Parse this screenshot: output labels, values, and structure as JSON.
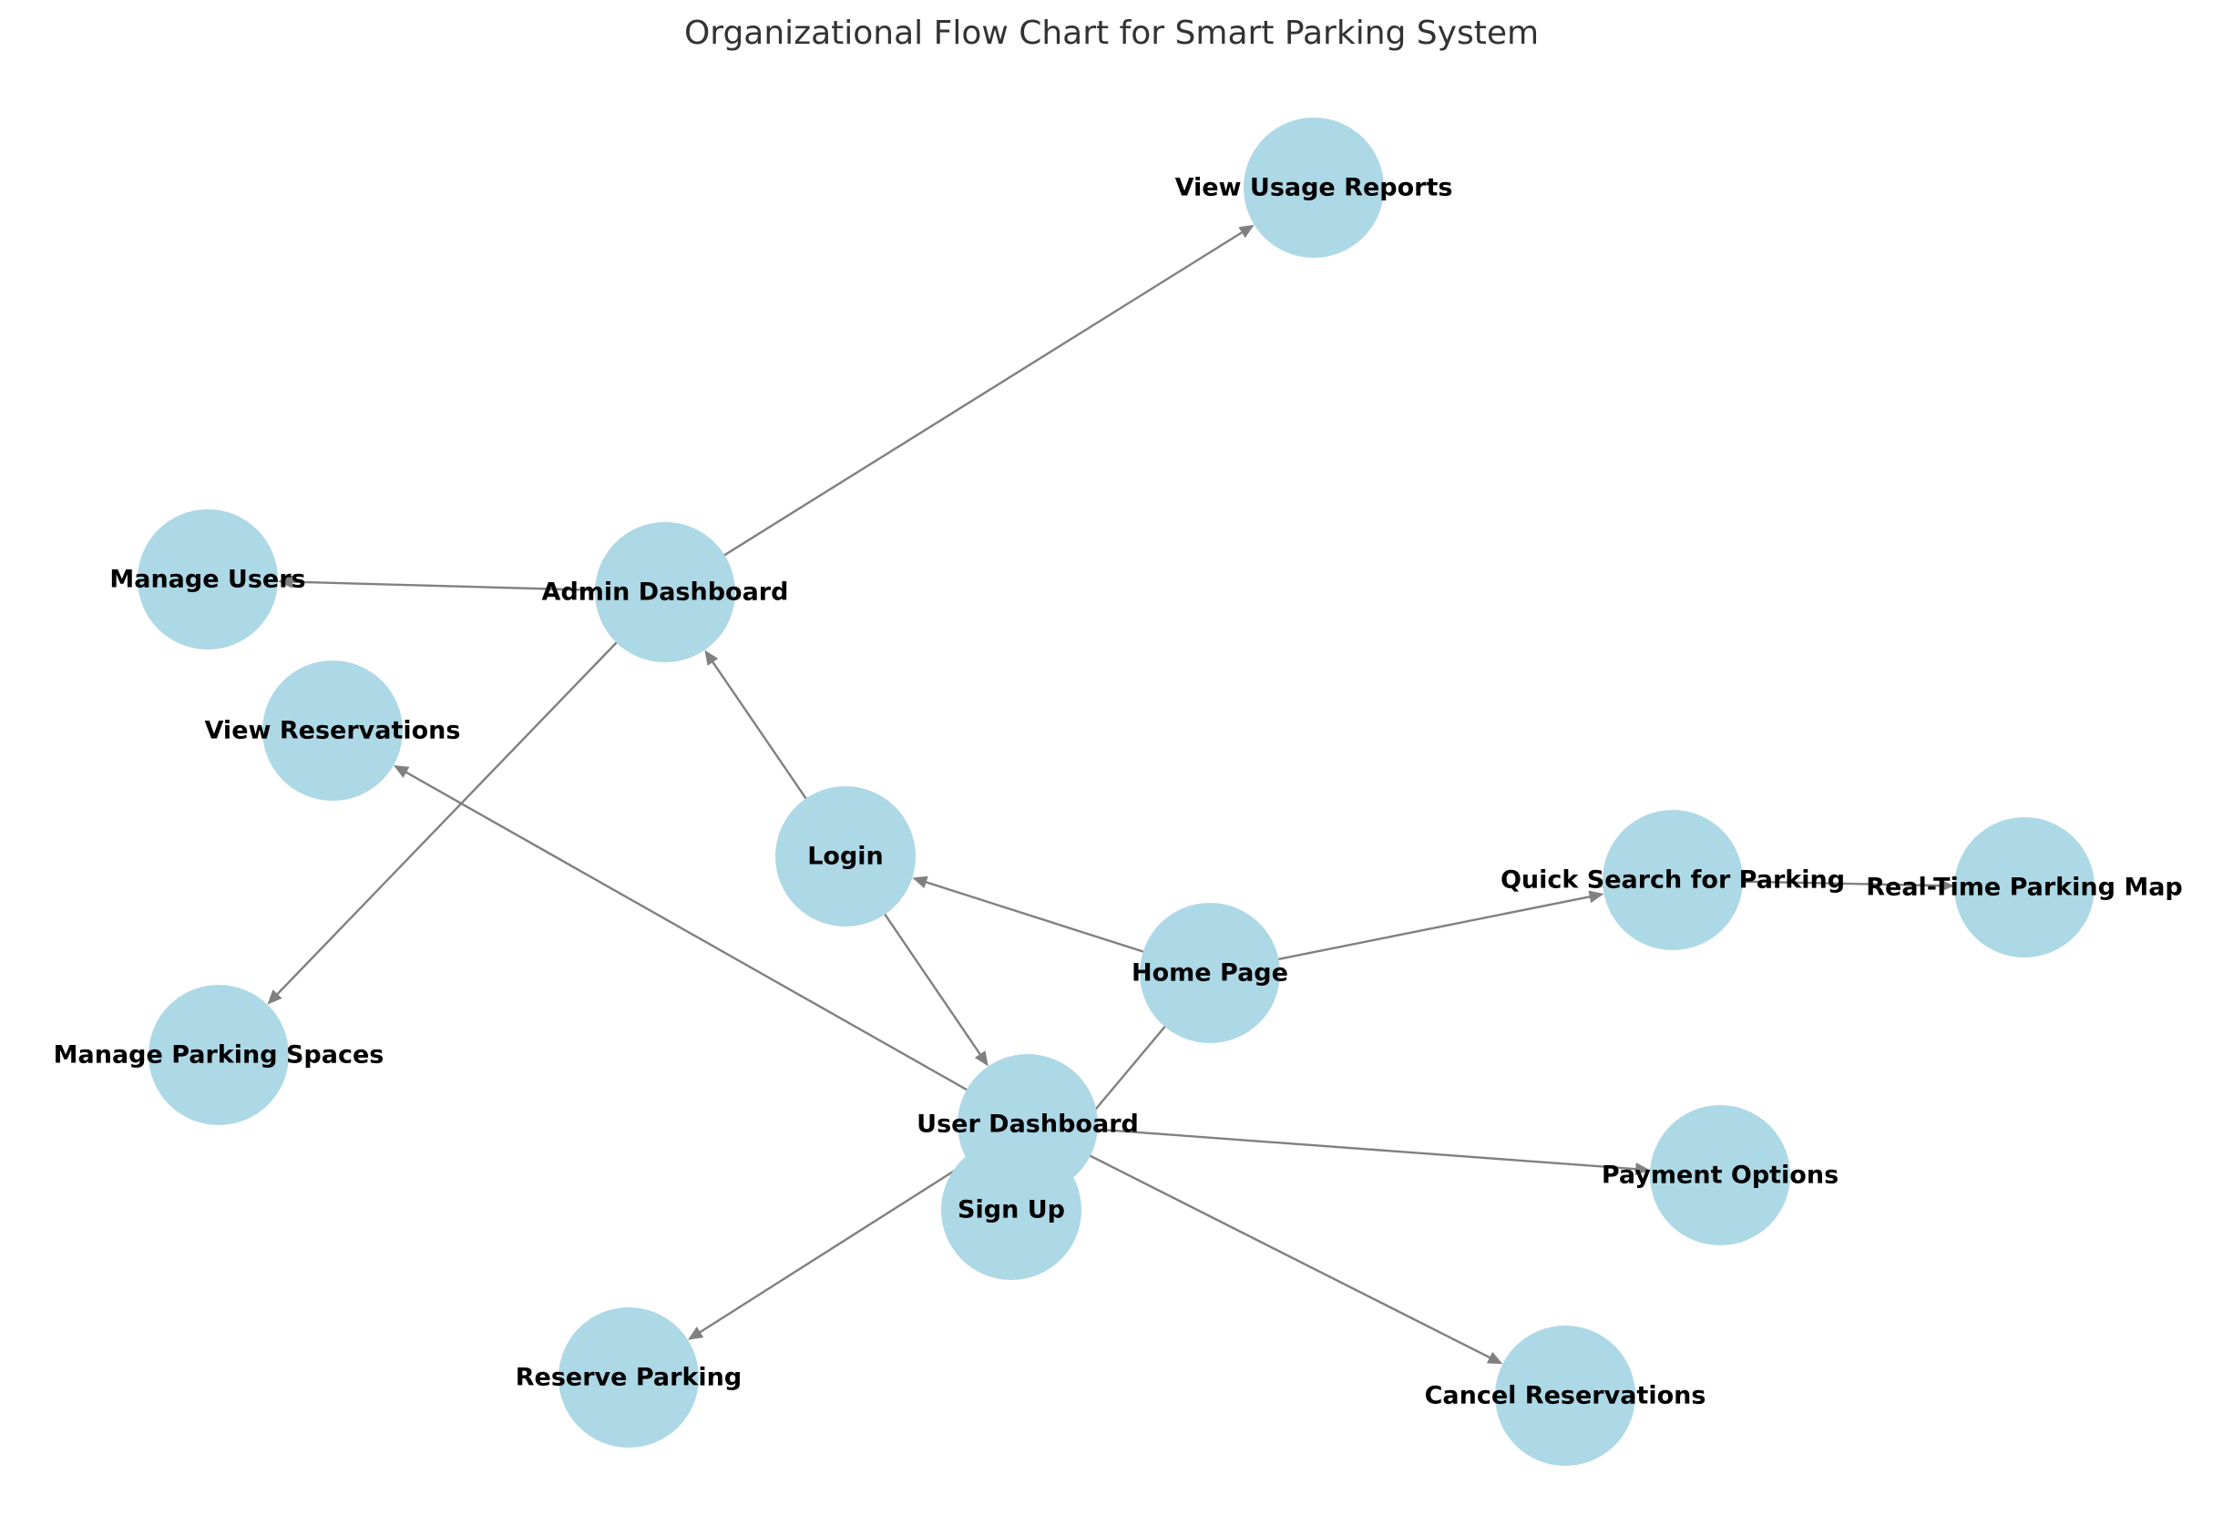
{
  "title": "Organizational Flow Chart for Smart Parking System",
  "colors": {
    "node_fill": "#add8e6",
    "edge": "#808080",
    "label": "#000000",
    "title": "#333333"
  },
  "nodes": [
    {
      "id": "home",
      "label": "Home Page"
    },
    {
      "id": "login",
      "label": "Login"
    },
    {
      "id": "signup",
      "label": "Sign Up"
    },
    {
      "id": "quick",
      "label": "Quick Search for Parking"
    },
    {
      "id": "realtime",
      "label": "Real-Time Parking Map"
    },
    {
      "id": "user",
      "label": "User Dashboard"
    },
    {
      "id": "admin",
      "label": "Admin Dashboard"
    },
    {
      "id": "viewres",
      "label": "View Reservations"
    },
    {
      "id": "reserve",
      "label": "Reserve Parking"
    },
    {
      "id": "cancel",
      "label": "Cancel Reservations"
    },
    {
      "id": "payment",
      "label": "Payment Options"
    },
    {
      "id": "manageusers",
      "label": "Manage Users"
    },
    {
      "id": "managespaces",
      "label": "Manage Parking Spaces"
    },
    {
      "id": "reports",
      "label": "View Usage Reports"
    }
  ],
  "edges": [
    {
      "from": "home",
      "to": "login"
    },
    {
      "from": "home",
      "to": "signup"
    },
    {
      "from": "home",
      "to": "quick"
    },
    {
      "from": "quick",
      "to": "realtime"
    },
    {
      "from": "login",
      "to": "user"
    },
    {
      "from": "login",
      "to": "admin"
    },
    {
      "from": "user",
      "to": "viewres"
    },
    {
      "from": "user",
      "to": "reserve"
    },
    {
      "from": "user",
      "to": "cancel"
    },
    {
      "from": "user",
      "to": "payment"
    },
    {
      "from": "admin",
      "to": "manageusers"
    },
    {
      "from": "admin",
      "to": "managespaces"
    },
    {
      "from": "admin",
      "to": "reports"
    }
  ]
}
